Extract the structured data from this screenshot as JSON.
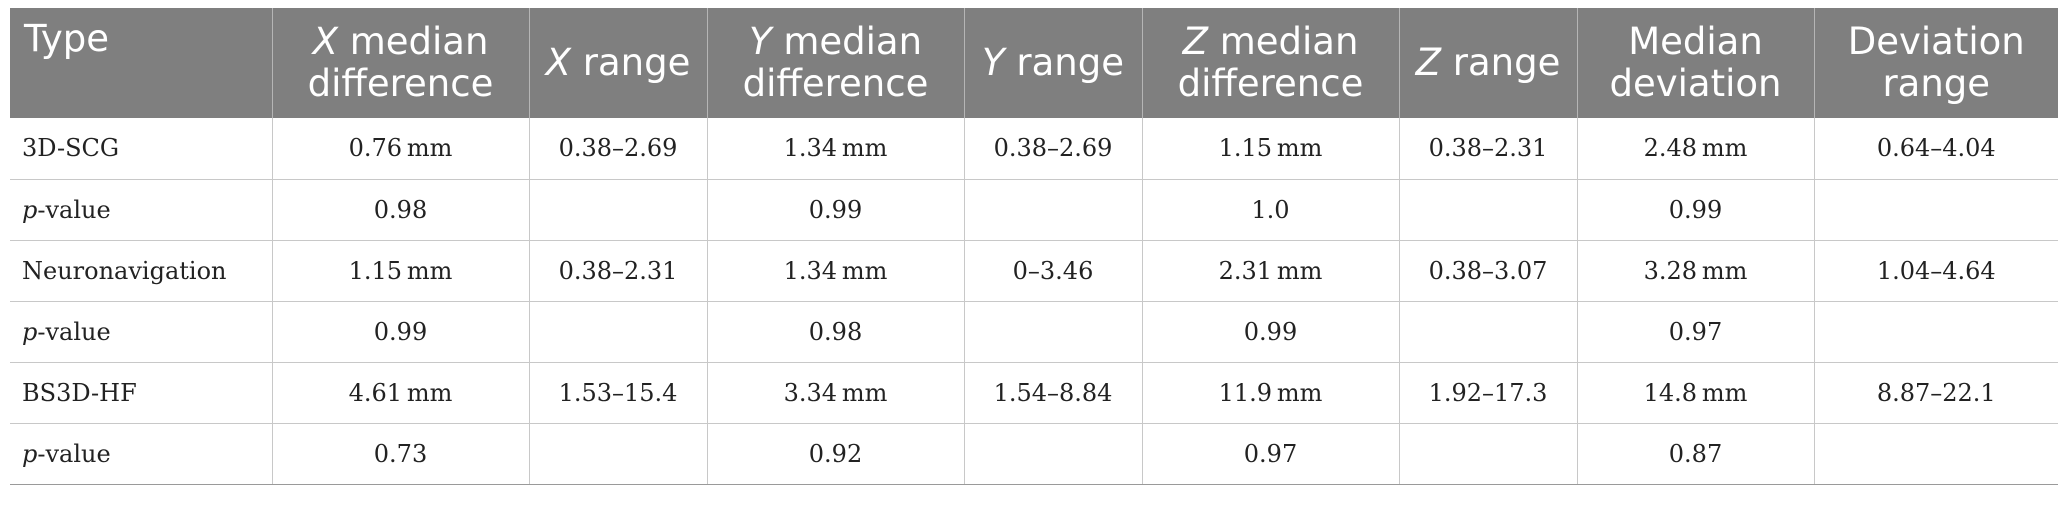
{
  "table": {
    "headers": [
      {
        "italic": "",
        "text": "Type"
      },
      {
        "italic": "X",
        "text": " median difference"
      },
      {
        "italic": "X",
        "text": " range"
      },
      {
        "italic": "Y",
        "text": " median difference"
      },
      {
        "italic": "Y",
        "text": " range"
      },
      {
        "italic": "Z",
        "text": " median difference"
      },
      {
        "italic": "Z",
        "text": " range"
      },
      {
        "italic": "",
        "text": "Median deviation"
      },
      {
        "italic": "",
        "text": "Deviation range"
      }
    ],
    "rows": [
      {
        "label_italic": "",
        "label": "3D-SCG",
        "cells": [
          "0.76 mm",
          "0.38–2.69",
          "1.34 mm",
          "0.38–2.69",
          "1.15 mm",
          "0.38–2.31",
          "2.48 mm",
          "0.64–4.04"
        ]
      },
      {
        "label_italic": "p",
        "label": "-value",
        "cells": [
          "0.98",
          "",
          "0.99",
          "",
          "1.0",
          "",
          "0.99",
          ""
        ]
      },
      {
        "label_italic": "",
        "label": "Neuronavigation",
        "cells": [
          "1.15 mm",
          "0.38–2.31",
          "1.34 mm",
          "0–3.46",
          "2.31 mm",
          "0.38–3.07",
          "3.28 mm",
          "1.04–4.64"
        ]
      },
      {
        "label_italic": "p",
        "label": "-value",
        "cells": [
          "0.99",
          "",
          "0.98",
          "",
          "0.99",
          "",
          "0.97",
          ""
        ]
      },
      {
        "label_italic": "",
        "label": "BS3D-HF",
        "cells": [
          "4.61 mm",
          "1.53–15.4",
          "3.34 mm",
          "1.54–8.84",
          "11.9 mm",
          "1.92–17.3",
          "14.8 mm",
          "8.87–22.1"
        ]
      },
      {
        "label_italic": "p",
        "label": "-value",
        "cells": [
          "0.73",
          "",
          "0.92",
          "",
          "0.97",
          "",
          "0.87",
          ""
        ]
      }
    ]
  }
}
